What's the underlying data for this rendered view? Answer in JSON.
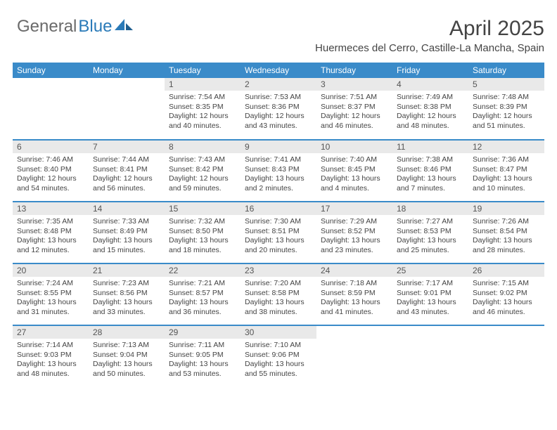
{
  "brand": {
    "part1": "General",
    "part2": "Blue"
  },
  "title": "April 2025",
  "location": "Huermeces del Cerro, Castille-La Mancha, Spain",
  "colors": {
    "header_bg": "#3a8bc9",
    "header_fg": "#ffffff",
    "daynum_bg": "#e9e9e9",
    "row_divider": "#3a8bc9",
    "text": "#444444",
    "brand_gray": "#6a6a6a",
    "brand_blue": "#2a7ab8"
  },
  "weekdays": [
    "Sunday",
    "Monday",
    "Tuesday",
    "Wednesday",
    "Thursday",
    "Friday",
    "Saturday"
  ],
  "weeks": [
    [
      {
        "empty": true
      },
      {
        "empty": true
      },
      {
        "day": "1",
        "sunrise": "Sunrise: 7:54 AM",
        "sunset": "Sunset: 8:35 PM",
        "daylight": "Daylight: 12 hours and 40 minutes."
      },
      {
        "day": "2",
        "sunrise": "Sunrise: 7:53 AM",
        "sunset": "Sunset: 8:36 PM",
        "daylight": "Daylight: 12 hours and 43 minutes."
      },
      {
        "day": "3",
        "sunrise": "Sunrise: 7:51 AM",
        "sunset": "Sunset: 8:37 PM",
        "daylight": "Daylight: 12 hours and 46 minutes."
      },
      {
        "day": "4",
        "sunrise": "Sunrise: 7:49 AM",
        "sunset": "Sunset: 8:38 PM",
        "daylight": "Daylight: 12 hours and 48 minutes."
      },
      {
        "day": "5",
        "sunrise": "Sunrise: 7:48 AM",
        "sunset": "Sunset: 8:39 PM",
        "daylight": "Daylight: 12 hours and 51 minutes."
      }
    ],
    [
      {
        "day": "6",
        "sunrise": "Sunrise: 7:46 AM",
        "sunset": "Sunset: 8:40 PM",
        "daylight": "Daylight: 12 hours and 54 minutes."
      },
      {
        "day": "7",
        "sunrise": "Sunrise: 7:44 AM",
        "sunset": "Sunset: 8:41 PM",
        "daylight": "Daylight: 12 hours and 56 minutes."
      },
      {
        "day": "8",
        "sunrise": "Sunrise: 7:43 AM",
        "sunset": "Sunset: 8:42 PM",
        "daylight": "Daylight: 12 hours and 59 minutes."
      },
      {
        "day": "9",
        "sunrise": "Sunrise: 7:41 AM",
        "sunset": "Sunset: 8:43 PM",
        "daylight": "Daylight: 13 hours and 2 minutes."
      },
      {
        "day": "10",
        "sunrise": "Sunrise: 7:40 AM",
        "sunset": "Sunset: 8:45 PM",
        "daylight": "Daylight: 13 hours and 4 minutes."
      },
      {
        "day": "11",
        "sunrise": "Sunrise: 7:38 AM",
        "sunset": "Sunset: 8:46 PM",
        "daylight": "Daylight: 13 hours and 7 minutes."
      },
      {
        "day": "12",
        "sunrise": "Sunrise: 7:36 AM",
        "sunset": "Sunset: 8:47 PM",
        "daylight": "Daylight: 13 hours and 10 minutes."
      }
    ],
    [
      {
        "day": "13",
        "sunrise": "Sunrise: 7:35 AM",
        "sunset": "Sunset: 8:48 PM",
        "daylight": "Daylight: 13 hours and 12 minutes."
      },
      {
        "day": "14",
        "sunrise": "Sunrise: 7:33 AM",
        "sunset": "Sunset: 8:49 PM",
        "daylight": "Daylight: 13 hours and 15 minutes."
      },
      {
        "day": "15",
        "sunrise": "Sunrise: 7:32 AM",
        "sunset": "Sunset: 8:50 PM",
        "daylight": "Daylight: 13 hours and 18 minutes."
      },
      {
        "day": "16",
        "sunrise": "Sunrise: 7:30 AM",
        "sunset": "Sunset: 8:51 PM",
        "daylight": "Daylight: 13 hours and 20 minutes."
      },
      {
        "day": "17",
        "sunrise": "Sunrise: 7:29 AM",
        "sunset": "Sunset: 8:52 PM",
        "daylight": "Daylight: 13 hours and 23 minutes."
      },
      {
        "day": "18",
        "sunrise": "Sunrise: 7:27 AM",
        "sunset": "Sunset: 8:53 PM",
        "daylight": "Daylight: 13 hours and 25 minutes."
      },
      {
        "day": "19",
        "sunrise": "Sunrise: 7:26 AM",
        "sunset": "Sunset: 8:54 PM",
        "daylight": "Daylight: 13 hours and 28 minutes."
      }
    ],
    [
      {
        "day": "20",
        "sunrise": "Sunrise: 7:24 AM",
        "sunset": "Sunset: 8:55 PM",
        "daylight": "Daylight: 13 hours and 31 minutes."
      },
      {
        "day": "21",
        "sunrise": "Sunrise: 7:23 AM",
        "sunset": "Sunset: 8:56 PM",
        "daylight": "Daylight: 13 hours and 33 minutes."
      },
      {
        "day": "22",
        "sunrise": "Sunrise: 7:21 AM",
        "sunset": "Sunset: 8:57 PM",
        "daylight": "Daylight: 13 hours and 36 minutes."
      },
      {
        "day": "23",
        "sunrise": "Sunrise: 7:20 AM",
        "sunset": "Sunset: 8:58 PM",
        "daylight": "Daylight: 13 hours and 38 minutes."
      },
      {
        "day": "24",
        "sunrise": "Sunrise: 7:18 AM",
        "sunset": "Sunset: 8:59 PM",
        "daylight": "Daylight: 13 hours and 41 minutes."
      },
      {
        "day": "25",
        "sunrise": "Sunrise: 7:17 AM",
        "sunset": "Sunset: 9:01 PM",
        "daylight": "Daylight: 13 hours and 43 minutes."
      },
      {
        "day": "26",
        "sunrise": "Sunrise: 7:15 AM",
        "sunset": "Sunset: 9:02 PM",
        "daylight": "Daylight: 13 hours and 46 minutes."
      }
    ],
    [
      {
        "day": "27",
        "sunrise": "Sunrise: 7:14 AM",
        "sunset": "Sunset: 9:03 PM",
        "daylight": "Daylight: 13 hours and 48 minutes."
      },
      {
        "day": "28",
        "sunrise": "Sunrise: 7:13 AM",
        "sunset": "Sunset: 9:04 PM",
        "daylight": "Daylight: 13 hours and 50 minutes."
      },
      {
        "day": "29",
        "sunrise": "Sunrise: 7:11 AM",
        "sunset": "Sunset: 9:05 PM",
        "daylight": "Daylight: 13 hours and 53 minutes."
      },
      {
        "day": "30",
        "sunrise": "Sunrise: 7:10 AM",
        "sunset": "Sunset: 9:06 PM",
        "daylight": "Daylight: 13 hours and 55 minutes."
      },
      {
        "empty": true
      },
      {
        "empty": true
      },
      {
        "empty": true
      }
    ]
  ]
}
